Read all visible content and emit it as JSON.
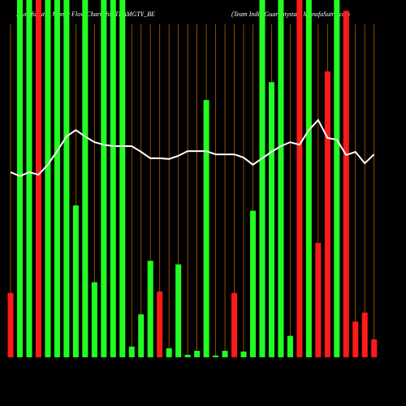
{
  "chart_data": {
    "type": "bar",
    "title": "MunafaSutra Money Flow Charts for TEAMGTY_BE",
    "subtitle": "(Team India Guarantystar) MunafaSutra.com",
    "values": [
      18,
      100,
      100,
      100,
      100,
      100,
      100,
      42.5,
      100,
      21,
      100,
      100,
      100,
      3,
      12,
      27,
      18.4,
      2.5,
      26,
      0.7,
      1.8,
      72,
      0.5,
      1.8,
      18,
      1.6,
      41,
      100,
      77,
      100,
      6,
      100,
      100,
      32,
      80,
      100,
      97,
      10,
      12.5,
      5
    ],
    "colors": [
      "#ff1a1a",
      "#22ff22",
      "#22ff22",
      "#ff1a1a",
      "#22ff22",
      "#22ff22",
      "#22ff22",
      "#22ff22",
      "#22ff22",
      "#22ff22",
      "#22ff22",
      "#22ff22",
      "#22ff22",
      "#22ff22",
      "#22ff22",
      "#22ff22",
      "#ff1a1a",
      "#22ff22",
      "#22ff22",
      "#22ff22",
      "#22ff22",
      "#22ff22",
      "#22ff22",
      "#22ff22",
      "#ff1a1a",
      "#22ff22",
      "#22ff22",
      "#22ff22",
      "#22ff22",
      "#22ff22",
      "#22ff22",
      "#ff1a1a",
      "#22ff22",
      "#ff1a1a",
      "#ff1a1a",
      "#22ff22",
      "#ff1a1a",
      "#ff1a1a",
      "#ff1a1a",
      "#ff1a1a"
    ],
    "line": {
      "color": "#ffffff",
      "values": [
        51.8,
        50.7,
        51.8,
        51.1,
        53.9,
        57.7,
        61.8,
        63.6,
        61.8,
        60.2,
        59.5,
        59.1,
        59.1,
        59.1,
        57.5,
        55.7,
        55.7,
        55.5,
        56.4,
        57.7,
        57.7,
        57.7,
        56.8,
        56.8,
        56.8,
        55.9,
        53.9,
        55.7,
        57.5,
        59.1,
        60.2,
        59.5,
        63.6,
        66.4,
        61.4,
        60.9,
        56.6,
        57.5,
        54.3,
        56.8
      ]
    },
    "ylim": [
      0,
      100
    ]
  }
}
